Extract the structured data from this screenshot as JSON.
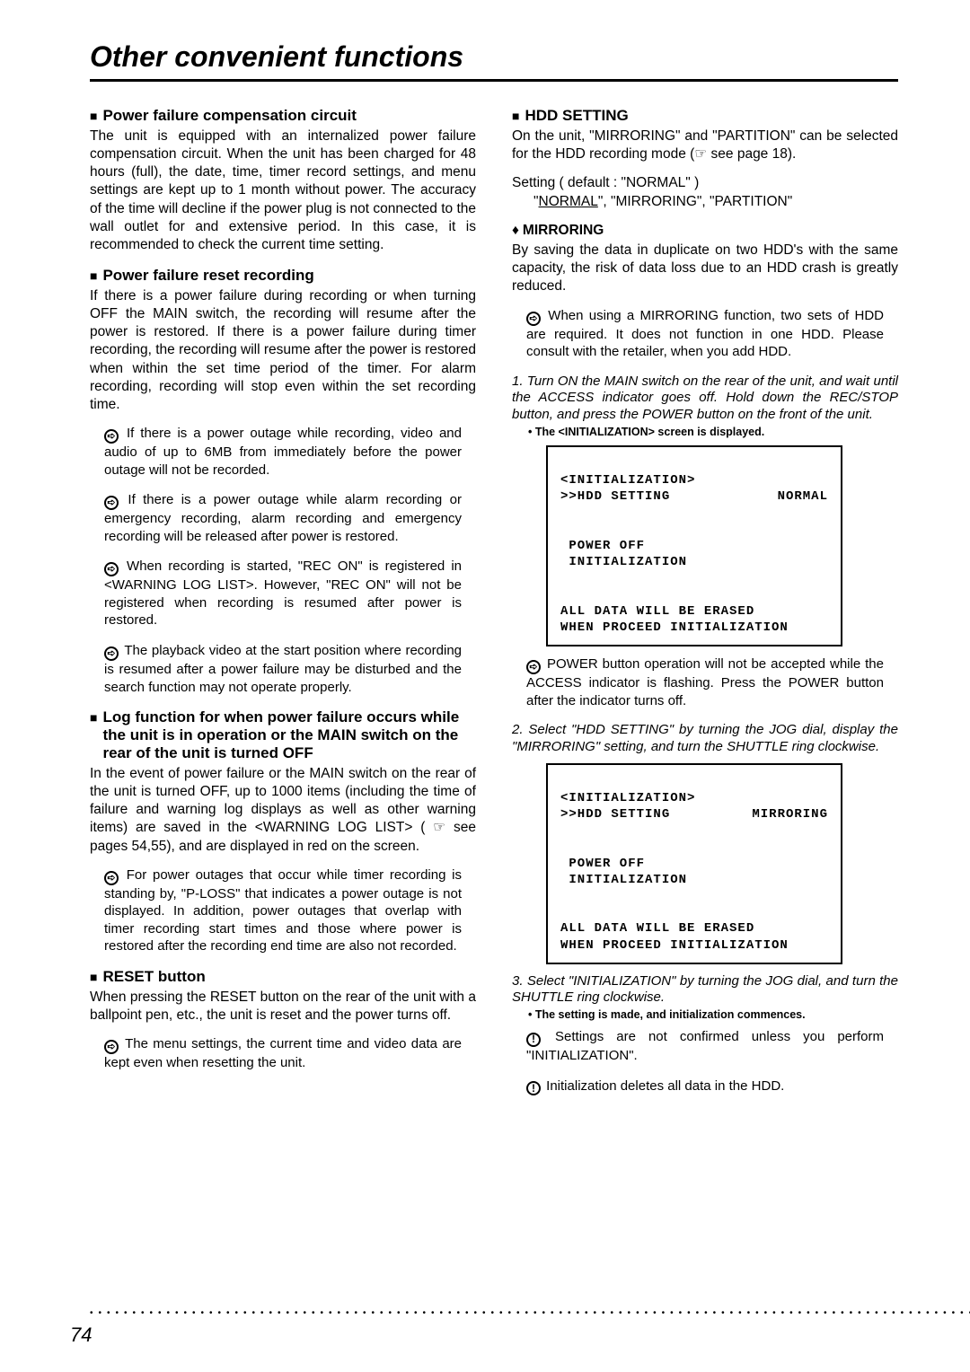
{
  "page": {
    "title": "Other convenient functions",
    "number": "74"
  },
  "left": {
    "sec1_head": "Power failure compensation circuit",
    "sec1_body": "The unit is equipped with an internalized power failure compensation circuit. When the unit has been charged for 48 hours (full), the date, time, timer record settings, and menu settings are kept up to 1 month without power. The accuracy of the time will decline if the power plug is not connected to the wall outlet for and extensive period. In this case, it is recommended to check the current time setting.",
    "sec2_head": "Power failure reset recording",
    "sec2_body": "If there is a power failure during recording or when turning OFF the MAIN switch, the recording will resume after the power is restored. If there is a power failure during timer recording, the recording will resume after the power is restored when within the set time period of the timer. For alarm recording, recording will stop even within the set recording time.",
    "sec2_note1": "If there is a power outage while recording, video and audio of up to 6MB from immediately before the power outage will not be recorded.",
    "sec2_note2": "If there is a power outage while alarm recording or emergency recording, alarm recording and emergency recording will be released after power is restored.",
    "sec2_note3": "When recording is started, \"REC ON\" is registered in <WARNING LOG LIST>. However, \"REC ON\" will not be registered when recording is resumed after power is restored.",
    "sec2_note4": "The playback video at the start position where recording is resumed after a power failure may be disturbed and the search function may not operate properly.",
    "sec3_head": "Log function for when power failure occurs while the unit is in operation or the MAIN switch on the rear of the unit is turned OFF",
    "sec3_body_a": "In the event of power failure or the MAIN switch on the rear of the unit is turned OFF, up to 1000 items (including the time of failure and warning log displays as well as other warning items) are saved in the <WARNING LOG LIST> ( ",
    "sec3_body_b": " see pages 54,55), and are displayed in red on the screen.",
    "sec3_note1": "For power outages that occur while timer recording is standing by, \"P-LOSS\" that indicates a power outage is not displayed. In addition, power outages that overlap with timer recording start times and those where power is restored after the recording end time are also not recorded.",
    "sec4_head": "RESET button",
    "sec4_body": "When pressing the RESET button on the rear of the unit with a ballpoint pen, etc., the unit is reset and the power turns off.",
    "sec4_note1": "The menu settings, the current time and video data are kept even when resetting the unit."
  },
  "right": {
    "sec1_head": "HDD SETTING",
    "sec1_body_a": "On the unit, \"MIRRORING\" and \"PARTITION\" can be selected for the HDD recording mode  (",
    "sec1_body_b": " see page 18).",
    "setting_line1": "Setting ( default : \"NORMAL\" )",
    "setting_line2_a": "\"",
    "setting_line2_u": "NORMAL",
    "setting_line2_b": "\", \"MIRRORING\", \"PARTITION\"",
    "sub1_head": "MIRRORING",
    "sub1_body": "By saving the data in duplicate on two HDD's with the same capacity, the risk of data loss due to an HDD crash is greatly reduced.",
    "sub1_note": "When using a MIRRORING function, two sets of HDD are required. It does not function in one HDD. Please consult with the retailer, when you add HDD.",
    "step1": "1. Turn ON the MAIN switch on the rear of the unit, and wait until the ACCESS indicator goes off. Hold down the REC/STOP button, and press the POWER button on the front of the unit.",
    "step1_bullet": "• The <INITIALIZATION> screen is displayed.",
    "screen1": {
      "l1": "<INITIALIZATION>",
      "l2a": ">>HDD SETTING",
      "l2b": "NORMAL",
      "l3": " POWER OFF",
      "l4": " INITIALIZATION",
      "l5": "ALL DATA WILL BE ERASED",
      "l6": "WHEN PROCEED INITIALIZATION"
    },
    "note_power": "POWER button operation will not be accepted while the ACCESS indicator is flashing. Press the POWER button after the indicator turns off.",
    "step2": "2. Select \"HDD SETTING\" by turning the JOG dial, display the \"MIRRORING\" setting, and turn the SHUTTLE ring clockwise.",
    "screen2": {
      "l1": "<INITIALIZATION>",
      "l2a": ">>HDD SETTING",
      "l2b": "MIRRORING",
      "l3": " POWER OFF",
      "l4": " INITIALIZATION",
      "l5": "ALL DATA WILL BE ERASED",
      "l6": "WHEN PROCEED INITIALIZATION"
    },
    "step3": "3. Select \"INITIALIZATION\" by turning the JOG dial, and turn the SHUTTLE ring clockwise.",
    "step3_bullet": "• The setting is made, and initialization commences.",
    "warn1": "Settings are not confirmed unless you perform \"INITIALIZATION\".",
    "warn2": "Initialization deletes all data in the HDD."
  }
}
